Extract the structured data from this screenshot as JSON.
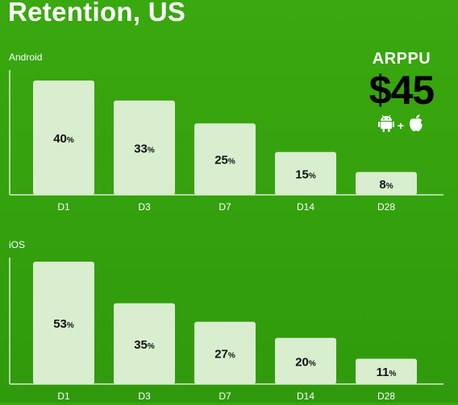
{
  "header": {
    "title": "Retention, US"
  },
  "arppu": {
    "label": "ARPPU",
    "value": "$45",
    "plus": "+",
    "icons": [
      "android-icon",
      "apple-icon"
    ]
  },
  "colors": {
    "background": "#36a30e",
    "bar_fill": "#d9edcf",
    "axis": "#d9edcf",
    "bar_label": "#111111"
  },
  "chart_data": [
    {
      "type": "bar",
      "title": "Android",
      "categories": [
        "D1",
        "D3",
        "D7",
        "D14",
        "D28"
      ],
      "values": [
        40,
        33,
        25,
        15,
        8
      ],
      "unit": "%",
      "ylim": [
        0,
        40
      ]
    },
    {
      "type": "bar",
      "title": "iOS",
      "categories": [
        "D1",
        "D3",
        "D7",
        "D14",
        "D28"
      ],
      "values": [
        53,
        35,
        27,
        20,
        11
      ],
      "unit": "%",
      "ylim": [
        0,
        53
      ]
    }
  ]
}
